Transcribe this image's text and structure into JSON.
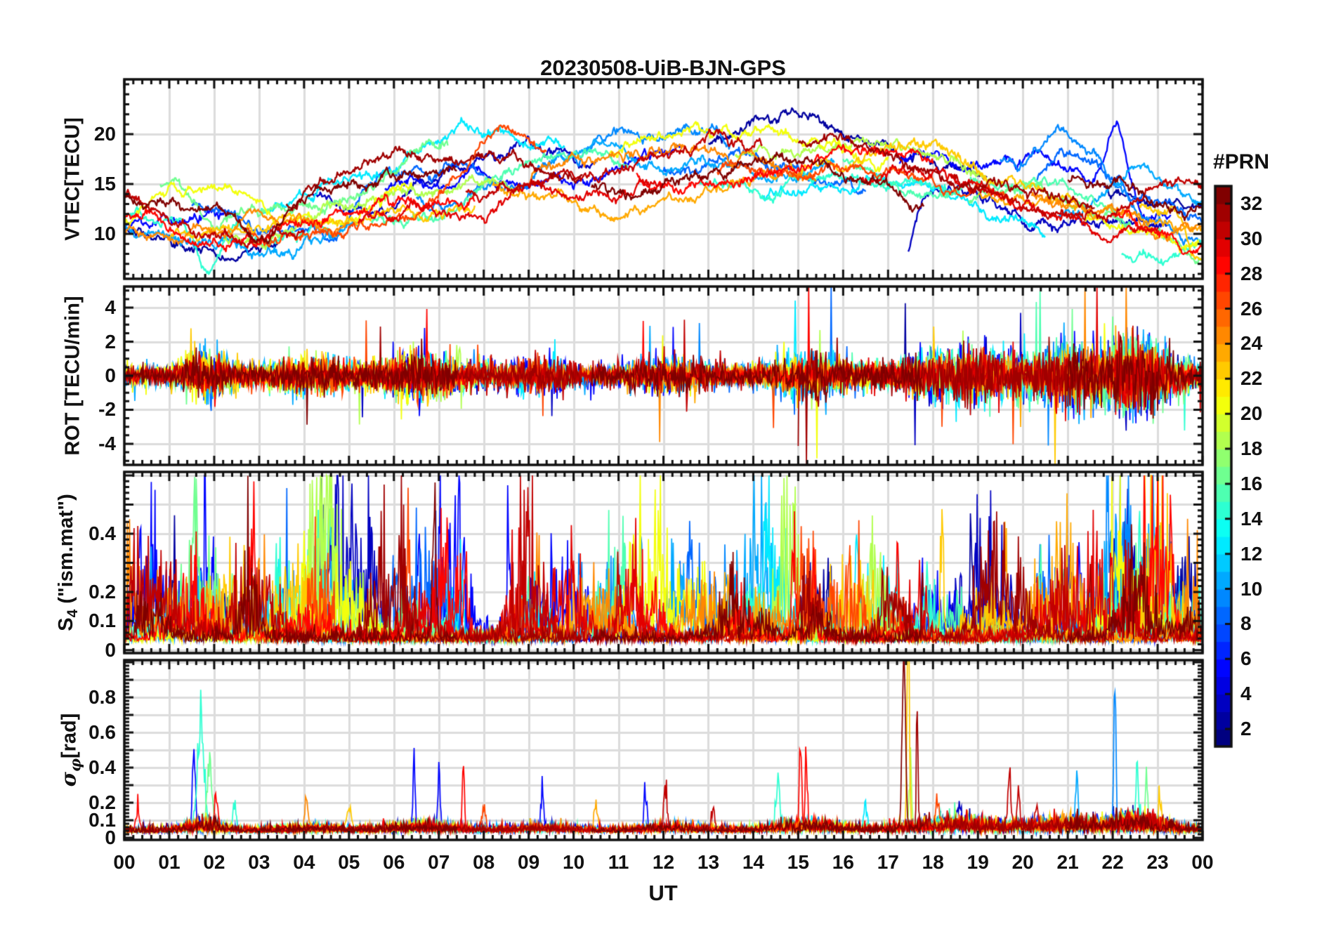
{
  "figure": {
    "title": "20230508-UiB-BJN-GPS",
    "xlabel": "UT"
  },
  "colorbar": {
    "title": "#PRN",
    "colormap": "jet",
    "n_segments": 32,
    "min": 1,
    "max": 33,
    "tick_values": [
      2,
      4,
      6,
      8,
      10,
      12,
      14,
      16,
      18,
      20,
      22,
      24,
      26,
      28,
      30,
      32
    ],
    "tick_labels": [
      "2",
      "4",
      "6",
      "8",
      "10",
      "12",
      "14",
      "16",
      "18",
      "20",
      "22",
      "24",
      "26",
      "28",
      "30",
      "32"
    ]
  },
  "chart_data": {
    "type": "line",
    "title": "20230508-UiB-BJN-GPS",
    "xaxis": {
      "label": "UT",
      "xlim": [
        0,
        24
      ],
      "minor_step": 0.2,
      "tick_values": [
        0,
        1,
        2,
        3,
        4,
        5,
        6,
        7,
        8,
        9,
        10,
        11,
        12,
        13,
        14,
        15,
        16,
        17,
        18,
        19,
        20,
        21,
        22,
        23,
        24
      ],
      "tick_labels": [
        "00",
        "01",
        "02",
        "03",
        "04",
        "05",
        "06",
        "07",
        "08",
        "09",
        "10",
        "11",
        "12",
        "13",
        "14",
        "15",
        "16",
        "17",
        "18",
        "19",
        "20",
        "21",
        "22",
        "23",
        "00"
      ]
    },
    "panels": [
      {
        "id": "vtec",
        "ylabel": "VTEC[TECU]",
        "ylabel_parts": [
          {
            "text": "VTEC[TECU]"
          },
          {
            "sub": ""
          },
          {
            "text": ""
          }
        ],
        "ylim": [
          5.5,
          25.5
        ],
        "minor_step": 1,
        "ytick_values": [
          10,
          15,
          20
        ],
        "ytick_labels": [
          "10",
          "15",
          "20"
        ],
        "grid": true,
        "description": "Vertical TEC per GPS satellite; ~8-22 TECU, low ~11 at night, high 15-20 midday/evening"
      },
      {
        "id": "rot",
        "ylabel": "ROT [TECU/min]",
        "ylabel_parts": [
          {
            "text": "ROT [TECU/min]"
          },
          {
            "sub": ""
          },
          {
            "text": ""
          }
        ],
        "ylim": [
          -5.24,
          5.24
        ],
        "minor_step": 0.5,
        "ytick_values": [
          -4,
          -2,
          0,
          2,
          4
        ],
        "ytick_labels": [
          "-4",
          "-2",
          "0",
          "2",
          "4"
        ],
        "grid": true,
        "description": "Rate of TEC, noise around 0 with spikes to ±4-5, strongest 18-23 UT"
      },
      {
        "id": "s4",
        "ylabel": "S4 (\"ism.mat\")",
        "ylabel_parts": [
          {
            "text": "S"
          },
          {
            "sub": "4"
          },
          {
            "text": " (\"ism.mat\")"
          }
        ],
        "ylim": [
          -0.01,
          0.612
        ],
        "minor_step": 0.02,
        "ytick_values": [
          0,
          0.1,
          0.2,
          0.3,
          0.4,
          0.5,
          0.6
        ],
        "ytick_labels": [
          "0",
          "0.1",
          "0.2",
          "",
          "0.4",
          "",
          ""
        ],
        "grid": true,
        "description": "Amplitude scintillation index, baseline ~0.05 with bursts 0.2-0.4"
      },
      {
        "id": "sigma_phi",
        "ylabel": "sigma_phi [rad]",
        "ylabel_parts": [
          {
            "text": "σ"
          },
          {
            "sub": "φ"
          },
          {
            "text": "[rad]"
          }
        ],
        "ylim": [
          -0.012,
          1.012
        ],
        "minor_step": 0.02,
        "ytick_values": [
          0,
          0.1,
          0.2,
          0.3,
          0.4,
          0.5,
          0.6,
          0.7,
          0.8,
          0.9,
          1.0
        ],
        "ytick_labels": [
          "0",
          "0.1",
          "0.2",
          "",
          "0.4",
          "",
          "0.6",
          "",
          "0.8",
          "",
          ""
        ],
        "grid": true,
        "description": "Phase scintillation, baseline ~0.05 rad with isolated spikes up to ~1"
      }
    ],
    "series": [
      {
        "prn": 2,
        "passes": [
          [
            0,
            3.4
          ],
          [
            13.0,
            19.2
          ],
          [
            21.8,
            24
          ]
        ]
      },
      {
        "prn": 3,
        "passes": [
          [
            4.2,
            10.5
          ],
          [
            17.45,
            23.2
          ]
        ]
      },
      {
        "prn": 5,
        "passes": [
          [
            0,
            2.3
          ],
          [
            5.8,
            12.4
          ],
          [
            17.25,
            23.3
          ]
        ]
      },
      {
        "prn": 8,
        "passes": [
          [
            1.5,
            8.0
          ],
          [
            12.0,
            16.5
          ],
          [
            20.3,
            24
          ]
        ]
      },
      {
        "prn": 9,
        "passes": [
          [
            6.5,
            13.5
          ],
          [
            19.5,
            24
          ]
        ]
      },
      {
        "prn": 10,
        "passes": [
          [
            0,
            5.2
          ],
          [
            9.5,
            15.8
          ],
          [
            20.8,
            24
          ]
        ]
      },
      {
        "prn": 12,
        "passes": [
          [
            3.0,
            9.8
          ],
          [
            14.2,
            20.5
          ]
        ]
      },
      {
        "prn": 14,
        "passes": [
          [
            0,
            4.6
          ],
          [
            12.8,
            18.6
          ],
          [
            22.2,
            24
          ]
        ]
      },
      {
        "prn": 15,
        "passes": [
          [
            5.5,
            11.2
          ],
          [
            16.0,
            22.4
          ]
        ]
      },
      {
        "prn": 16,
        "passes": [
          [
            0.8,
            7.2
          ],
          [
            18.8,
            24
          ]
        ]
      },
      {
        "prn": 18,
        "passes": [
          [
            2.2,
            8.8
          ],
          [
            13.6,
            19.4
          ]
        ]
      },
      {
        "prn": 20,
        "passes": [
          [
            0,
            6.4
          ],
          [
            10.8,
            17.0
          ],
          [
            21.4,
            24
          ]
        ]
      },
      {
        "prn": 22,
        "passes": [
          [
            1.0,
            7.8
          ],
          [
            14.8,
            21.2
          ],
          [
            22.6,
            24
          ]
        ]
      },
      {
        "prn": 23,
        "passes": [
          [
            8.2,
            14.6
          ],
          [
            19.0,
            24
          ]
        ]
      },
      {
        "prn": 24,
        "passes": [
          [
            0,
            5.0
          ],
          [
            9.0,
            15.4
          ],
          [
            20.2,
            24
          ]
        ]
      },
      {
        "prn": 26,
        "passes": [
          [
            2.6,
            9.4
          ],
          [
            13.2,
            19.8
          ]
        ]
      },
      {
        "prn": 28,
        "passes": [
          [
            0,
            7.8
          ],
          [
            11.4,
            18.0
          ],
          [
            22.0,
            24
          ]
        ]
      },
      {
        "prn": 29,
        "passes": [
          [
            5.2,
            12.0
          ],
          [
            16.4,
            23.0
          ]
        ]
      },
      {
        "prn": 30,
        "passes": [
          [
            0,
            4.0
          ],
          [
            7.6,
            14.2
          ],
          [
            18.4,
            24
          ]
        ]
      },
      {
        "prn": 31,
        "passes": [
          [
            3.6,
            10.2
          ],
          [
            15.0,
            21.6
          ]
        ]
      },
      {
        "prn": 32,
        "passes": [
          [
            0,
            7.4
          ],
          [
            10.4,
            17.8
          ],
          [
            21.0,
            24
          ]
        ]
      }
    ],
    "vtec_features": [
      {
        "prn": 26,
        "t": 8.4,
        "w": 0.9,
        "a": 4.0
      },
      {
        "prn": 28,
        "t": 9.3,
        "w": 1.0,
        "a": 3.5
      },
      {
        "prn": 12,
        "t": 7.5,
        "w": 1.5,
        "a": 2.5
      },
      {
        "prn": 32,
        "t": 3.2,
        "w": 0.8,
        "a": -3.5
      },
      {
        "prn": 14,
        "t": 1.85,
        "w": 0.35,
        "a": -5.5
      },
      {
        "prn": 16,
        "t": 2.0,
        "w": 0.5,
        "a": -3.0
      },
      {
        "prn": 8,
        "t": 4.6,
        "w": 0.5,
        "a": -2.5
      },
      {
        "prn": 3,
        "t": 17.38,
        "w": 0.3,
        "a": -8.0
      },
      {
        "prn": 9,
        "t": 21.0,
        "w": 1.1,
        "a": 4.5
      },
      {
        "prn": 10,
        "t": 22.45,
        "w": 0.8,
        "a": 3.5
      },
      {
        "prn": 5,
        "t": 22.1,
        "w": 0.3,
        "a": 6.5
      },
      {
        "prn": 2,
        "t": 21.4,
        "w": 0.8,
        "a": 4.0
      },
      {
        "prn": 8,
        "t": 21.0,
        "w": 0.9,
        "a": 3.0
      },
      {
        "prn": 22,
        "t": 23.95,
        "w": 0.4,
        "a": -6.0
      }
    ],
    "rot_activity": [
      {
        "t": 1.8,
        "w": 0.5,
        "a": 1.2
      },
      {
        "t": 4.2,
        "w": 0.8,
        "a": 0.5
      },
      {
        "t": 6.6,
        "w": 0.9,
        "a": 0.9
      },
      {
        "t": 9.3,
        "w": 0.8,
        "a": 0.6
      },
      {
        "t": 12.2,
        "w": 0.9,
        "a": 0.6
      },
      {
        "t": 15.2,
        "w": 0.9,
        "a": 1.1
      },
      {
        "t": 18.6,
        "w": 1.5,
        "a": 1.4
      },
      {
        "t": 20.9,
        "w": 0.8,
        "a": 1.2
      },
      {
        "t": 22.5,
        "w": 0.9,
        "a": 1.9
      }
    ],
    "s4_events": [
      {
        "t": 0.35,
        "prn": 5,
        "peak": 0.28,
        "w": 0.05
      },
      {
        "t": 0.6,
        "prn": 10,
        "peak": 0.24,
        "w": 0.05
      },
      {
        "t": 1.1,
        "prn": 2,
        "peak": 0.26,
        "w": 0.06
      },
      {
        "t": 1.55,
        "prn": 16,
        "peak": 0.3,
        "w": 0.06
      },
      {
        "t": 2.1,
        "prn": 14,
        "peak": 0.27,
        "w": 0.07
      },
      {
        "t": 2.85,
        "prn": 28,
        "peak": 0.34,
        "w": 0.08
      },
      {
        "t": 3.45,
        "prn": 12,
        "peak": 0.28,
        "w": 0.07
      },
      {
        "t": 4.0,
        "prn": 20,
        "peak": 0.3,
        "w": 0.06
      },
      {
        "t": 4.6,
        "prn": 14,
        "peak": 0.31,
        "w": 0.06
      },
      {
        "t": 6.3,
        "prn": 26,
        "peak": 0.3,
        "w": 0.08
      },
      {
        "t": 6.55,
        "prn": 5,
        "peak": 0.27,
        "w": 0.05
      },
      {
        "t": 6.9,
        "prn": 32,
        "peak": 0.35,
        "w": 0.06
      },
      {
        "t": 7.5,
        "prn": 12,
        "peak": 0.26,
        "w": 0.05
      },
      {
        "t": 8.55,
        "prn": 5,
        "peak": 0.33,
        "w": 0.05
      },
      {
        "t": 9.2,
        "prn": 24,
        "peak": 0.25,
        "w": 0.06
      },
      {
        "t": 10.15,
        "prn": 9,
        "peak": 0.32,
        "w": 0.05
      },
      {
        "t": 11.0,
        "prn": 30,
        "peak": 0.26,
        "w": 0.06
      },
      {
        "t": 11.5,
        "prn": 9,
        "peak": 0.29,
        "w": 0.05
      },
      {
        "t": 12.4,
        "prn": 14,
        "peak": 0.31,
        "w": 0.06
      },
      {
        "t": 13.4,
        "prn": 9,
        "peak": 0.27,
        "w": 0.05
      },
      {
        "t": 14.3,
        "prn": 12,
        "peak": 0.3,
        "w": 0.06
      },
      {
        "t": 14.9,
        "prn": 28,
        "peak": 0.33,
        "w": 0.06
      },
      {
        "t": 15.35,
        "prn": 28,
        "peak": 0.27,
        "w": 0.05
      },
      {
        "t": 16.3,
        "prn": 12,
        "peak": 0.27,
        "w": 0.05
      },
      {
        "t": 17.2,
        "prn": 28,
        "peak": 0.32,
        "w": 0.06
      },
      {
        "t": 17.8,
        "prn": 32,
        "peak": 0.3,
        "w": 0.05
      },
      {
        "t": 18.2,
        "prn": 22,
        "peak": 0.37,
        "w": 0.05
      },
      {
        "t": 18.85,
        "prn": 2,
        "peak": 0.4,
        "w": 0.04
      },
      {
        "t": 19.3,
        "prn": 23,
        "peak": 0.26,
        "w": 0.05
      },
      {
        "t": 19.6,
        "prn": 23,
        "peak": 0.28,
        "w": 0.05
      },
      {
        "t": 20.4,
        "prn": 15,
        "peak": 0.25,
        "w": 0.05
      },
      {
        "t": 20.9,
        "prn": 15,
        "peak": 0.28,
        "w": 0.05
      },
      {
        "t": 21.5,
        "prn": 31,
        "peak": 0.26,
        "w": 0.05
      },
      {
        "t": 21.9,
        "prn": 9,
        "peak": 0.3,
        "w": 0.05
      },
      {
        "t": 22.6,
        "prn": 14,
        "peak": 0.3,
        "w": 0.05
      },
      {
        "t": 22.9,
        "prn": 10,
        "peak": 0.28,
        "w": 0.05
      },
      {
        "t": 23.3,
        "prn": 28,
        "peak": 0.25,
        "w": 0.05
      }
    ],
    "sigma_events": [
      {
        "t": 0.3,
        "prn": 28,
        "peak": 0.12,
        "w": 0.06
      },
      {
        "t": 1.55,
        "prn": 5,
        "peak": 0.46,
        "w": 0.04
      },
      {
        "t": 1.7,
        "prn": 14,
        "peak": 0.62,
        "w": 0.1
      },
      {
        "t": 1.9,
        "prn": 16,
        "peak": 0.4,
        "w": 0.07
      },
      {
        "t": 2.05,
        "prn": 28,
        "peak": 0.2,
        "w": 0.05
      },
      {
        "t": 2.45,
        "prn": 14,
        "peak": 0.15,
        "w": 0.05
      },
      {
        "t": 4.05,
        "prn": 24,
        "peak": 0.22,
        "w": 0.04
      },
      {
        "t": 5.0,
        "prn": 22,
        "peak": 0.12,
        "w": 0.08
      },
      {
        "t": 6.2,
        "prn": 30,
        "peak": 0.14,
        "w": 0.06
      },
      {
        "t": 6.45,
        "prn": 5,
        "peak": 0.37,
        "w": 0.035
      },
      {
        "t": 7.0,
        "prn": 5,
        "peak": 0.3,
        "w": 0.035
      },
      {
        "t": 7.55,
        "prn": 28,
        "peak": 0.4,
        "w": 0.03
      },
      {
        "t": 8.0,
        "prn": 26,
        "peak": 0.12,
        "w": 0.07
      },
      {
        "t": 9.3,
        "prn": 5,
        "peak": 0.22,
        "w": 0.04
      },
      {
        "t": 10.5,
        "prn": 23,
        "peak": 0.12,
        "w": 0.06
      },
      {
        "t": 11.6,
        "prn": 5,
        "peak": 0.2,
        "w": 0.05
      },
      {
        "t": 12.05,
        "prn": 30,
        "peak": 0.22,
        "w": 0.05
      },
      {
        "t": 13.1,
        "prn": 30,
        "peak": 0.12,
        "w": 0.06
      },
      {
        "t": 14.55,
        "prn": 14,
        "peak": 0.28,
        "w": 0.06
      },
      {
        "t": 14.75,
        "prn": 16,
        "peak": 0.22,
        "w": 0.05
      },
      {
        "t": 15.05,
        "prn": 28,
        "peak": 0.5,
        "w": 0.035
      },
      {
        "t": 15.18,
        "prn": 28,
        "peak": 0.44,
        "w": 0.03
      },
      {
        "t": 16.5,
        "prn": 12,
        "peak": 0.12,
        "w": 0.06
      },
      {
        "t": 17.35,
        "prn": 32,
        "peak": 1.25,
        "w": 0.05
      },
      {
        "t": 17.45,
        "prn": 22,
        "peak": 1.2,
        "w": 0.035
      },
      {
        "t": 17.5,
        "prn": 18,
        "peak": 0.3,
        "w": 0.04
      },
      {
        "t": 17.65,
        "prn": 31,
        "peak": 0.78,
        "w": 0.025
      },
      {
        "t": 18.1,
        "prn": 26,
        "peak": 0.15,
        "w": 0.06
      },
      {
        "t": 18.6,
        "prn": 3,
        "peak": 0.14,
        "w": 0.05
      },
      {
        "t": 19.7,
        "prn": 30,
        "peak": 0.25,
        "w": 0.05
      },
      {
        "t": 19.9,
        "prn": 30,
        "peak": 0.2,
        "w": 0.04
      },
      {
        "t": 20.3,
        "prn": 30,
        "peak": 0.14,
        "w": 0.05
      },
      {
        "t": 21.2,
        "prn": 10,
        "peak": 0.26,
        "w": 0.04
      },
      {
        "t": 22.05,
        "prn": 9,
        "peak": 0.88,
        "w": 0.03
      },
      {
        "t": 22.55,
        "prn": 14,
        "peak": 0.3,
        "w": 0.04
      },
      {
        "t": 22.75,
        "prn": 16,
        "peak": 0.27,
        "w": 0.04
      },
      {
        "t": 23.05,
        "prn": 22,
        "peak": 0.2,
        "w": 0.04
      }
    ]
  }
}
